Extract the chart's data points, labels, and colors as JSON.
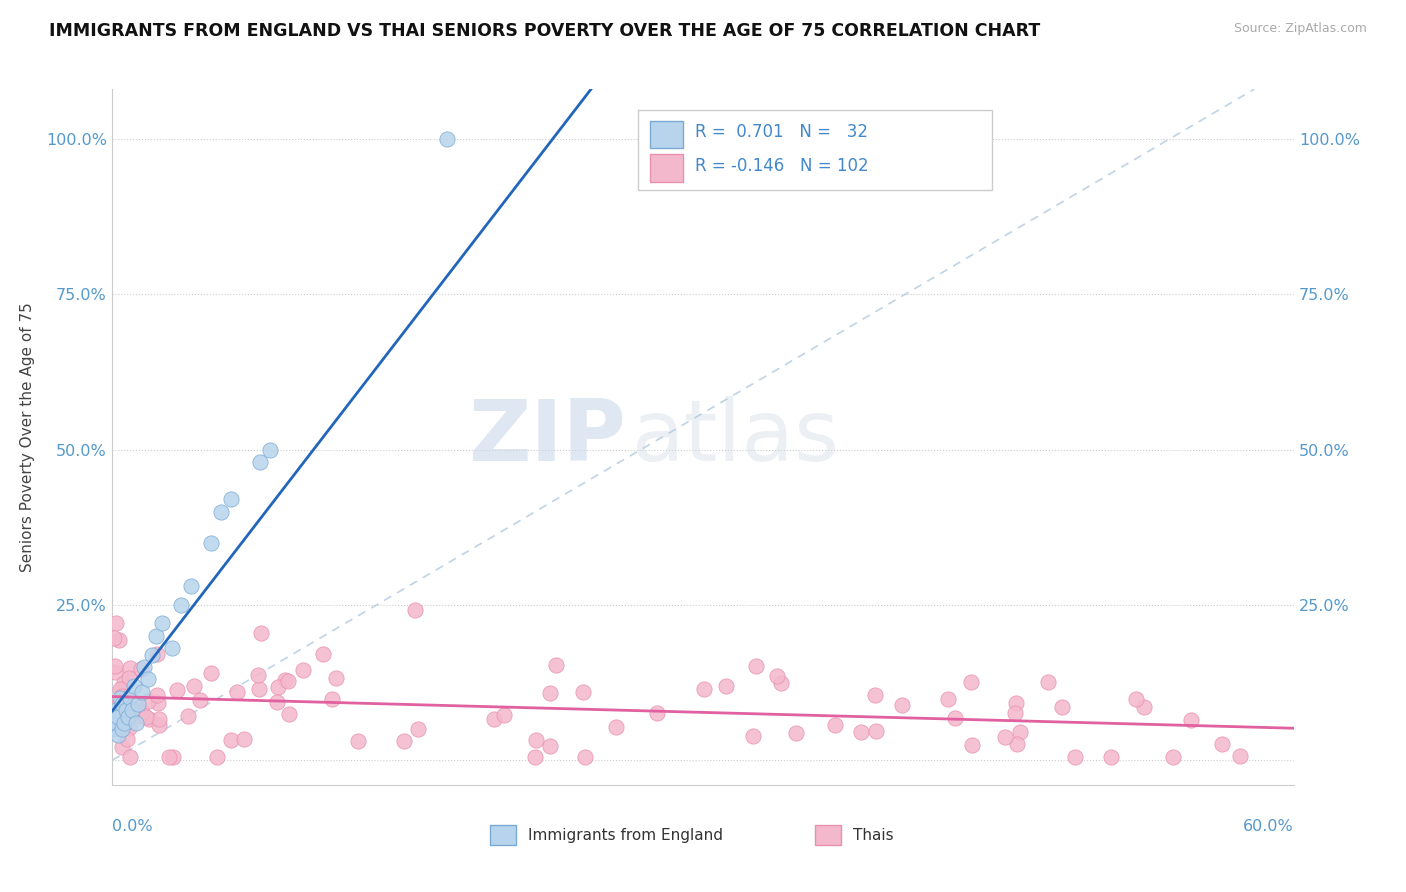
{
  "title": "IMMIGRANTS FROM ENGLAND VS THAI SENIORS POVERTY OVER THE AGE OF 75 CORRELATION CHART",
  "source": "Source: ZipAtlas.com",
  "ylabel": "Seniors Poverty Over the Age of 75",
  "xmin": 0.0,
  "xmax": 0.6,
  "ymin": -0.04,
  "ymax": 1.08,
  "r_england": 0.701,
  "n_england": 32,
  "r_thais": -0.146,
  "n_thais": 102,
  "color_england_fill": "#b8d4ec",
  "color_england_edge": "#7aaad4",
  "color_thais_fill": "#f4b8cc",
  "color_thais_edge": "#e890b0",
  "color_england_line": "#2266bb",
  "color_thais_line": "#e060a0",
  "color_diag_line": "#b0c8e0",
  "legend_label_england": "Immigrants from England",
  "legend_label_thais": "Thais",
  "ytick_vals": [
    0.0,
    0.25,
    0.5,
    0.75,
    1.0
  ],
  "ytick_labels": [
    "",
    "25.0%",
    "50.0%",
    "75.0%",
    "100.0%"
  ],
  "watermark_zip": "ZIP",
  "watermark_atlas": "atlas"
}
